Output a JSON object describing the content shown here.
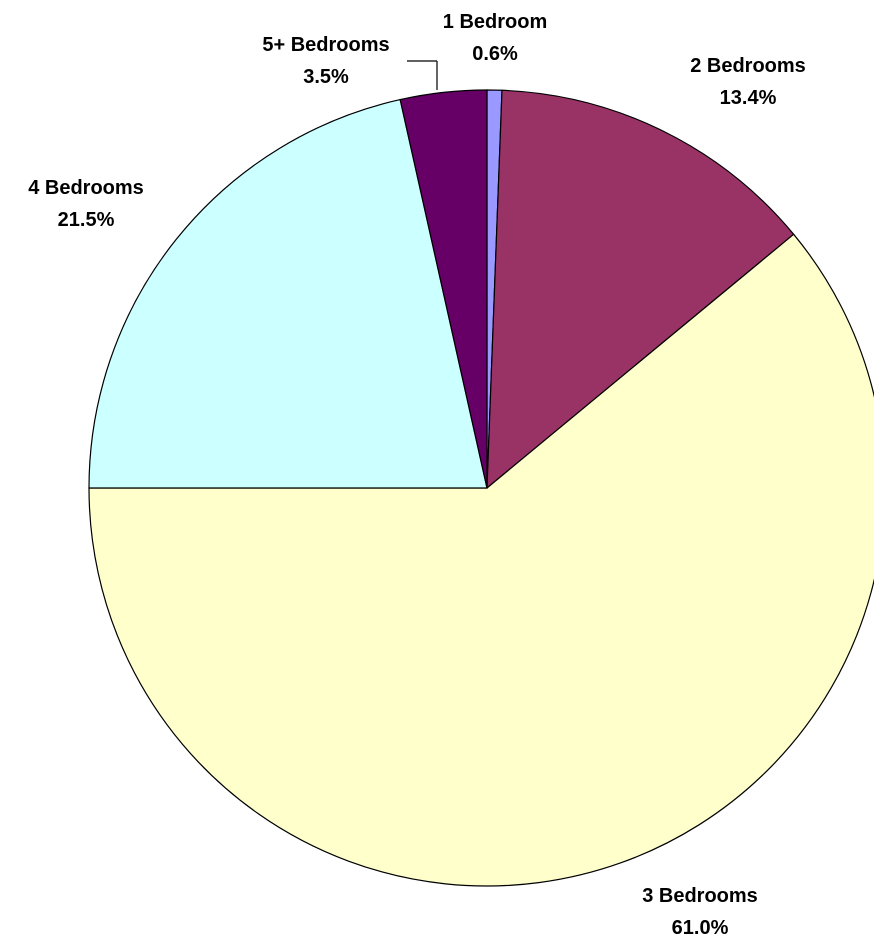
{
  "chart_data": {
    "type": "pie",
    "title": "",
    "slices": [
      {
        "label": "1 Bedroom",
        "value": 0.6,
        "value_label": "0.6%",
        "color": "#9999FF"
      },
      {
        "label": "2 Bedrooms",
        "value": 13.4,
        "value_label": "13.4%",
        "color": "#993366"
      },
      {
        "label": "3 Bedrooms",
        "value": 61.0,
        "value_label": "61.0%",
        "color": "#FFFFCC"
      },
      {
        "label": "4 Bedrooms",
        "value": 21.5,
        "value_label": "21.5%",
        "color": "#CCFFFF"
      },
      {
        "label": "5+ Bedrooms",
        "value": 3.5,
        "value_label": "3.5%",
        "color": "#660066"
      }
    ],
    "start_direction": "top",
    "direction": "clockwise",
    "legend": "none"
  }
}
